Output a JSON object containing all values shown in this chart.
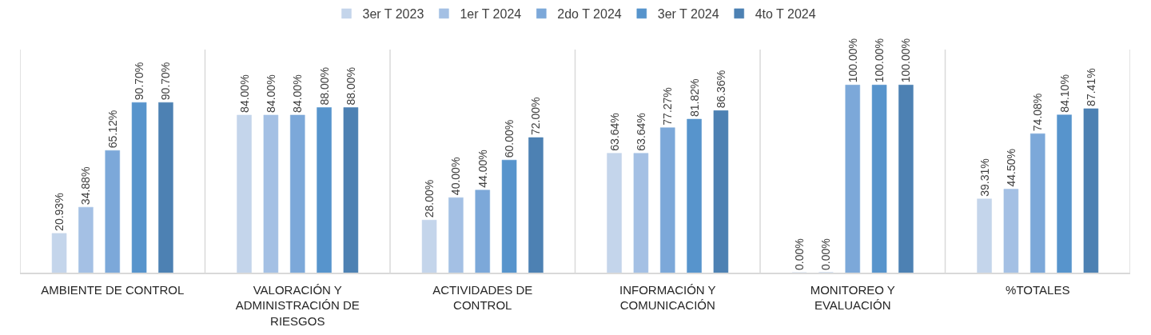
{
  "chart_data": {
    "type": "bar",
    "categories": [
      "AMBIENTE DE CONTROL",
      "VALORACIÓN Y ADMINISTRACIÓN DE RIESGOS",
      "ACTIVIDADES DE CONTROL",
      "INFORMACIÓN Y COMUNICACIÓN",
      "MONITOREO Y EVALUACIÓN",
      "%TOTALES"
    ],
    "series": [
      {
        "name": "3er T 2023",
        "color": "#c4d5eb",
        "values": [
          20.93,
          84.0,
          28.0,
          63.64,
          0.0,
          39.31
        ],
        "value_labels": [
          "20.93%",
          "84.00%",
          "28.00%",
          "63.64%",
          "0.00%",
          "39.31%"
        ]
      },
      {
        "name": "1er T 2024",
        "color": "#a4c0e4",
        "values": [
          34.88,
          84.0,
          40.0,
          63.64,
          0.0,
          44.5
        ],
        "value_labels": [
          "34.88%",
          "84.00%",
          "40.00%",
          "63.64%",
          "0.00%",
          "44.50%"
        ]
      },
      {
        "name": "2do T 2024",
        "color": "#7ca8d9",
        "values": [
          65.12,
          84.0,
          44.0,
          77.27,
          100.0,
          74.08
        ],
        "value_labels": [
          "65.12%",
          "84.00%",
          "44.00%",
          "77.27%",
          "100.00%",
          "74.08%"
        ]
      },
      {
        "name": "3er T 2024",
        "color": "#5794cc",
        "values": [
          90.7,
          88.0,
          60.0,
          81.82,
          100.0,
          84.1
        ],
        "value_labels": [
          "90.70%",
          "88.00%",
          "60.00%",
          "81.82%",
          "100.00%",
          "84.10%"
        ]
      },
      {
        "name": "4to T 2024",
        "color": "#4d81b3",
        "values": [
          90.7,
          88.0,
          72.0,
          86.36,
          100.0,
          87.41
        ],
        "value_labels": [
          "90.70%",
          "88.00%",
          "72.00%",
          "86.36%",
          "100.00%",
          "87.41%"
        ]
      }
    ],
    "legend": "top",
    "grid": "x"
  }
}
